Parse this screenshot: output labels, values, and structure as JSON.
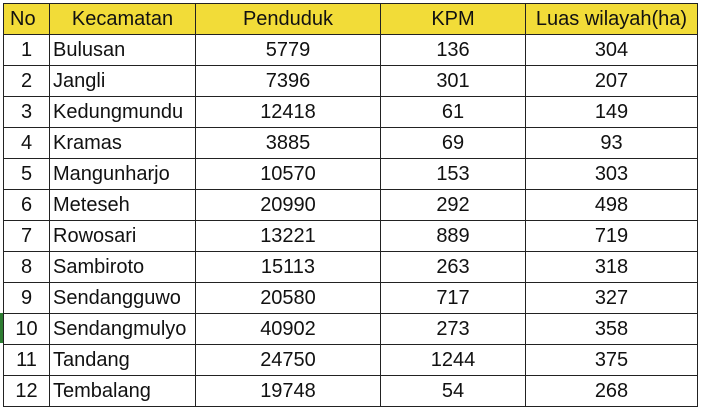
{
  "table": {
    "headers": [
      "No",
      "Kecamatan",
      "Penduduk",
      "KPM",
      "Luas wilayah(ha)"
    ],
    "rows": [
      [
        "1",
        "Bulusan",
        "5779",
        "136",
        "304"
      ],
      [
        "2",
        "Jangli",
        "7396",
        "301",
        "207"
      ],
      [
        "3",
        "Kedungmundu",
        "12418",
        "61",
        "149"
      ],
      [
        "4",
        "Kramas",
        "3885",
        "69",
        "93"
      ],
      [
        "5",
        "Mangunharjo",
        "10570",
        "153",
        "303"
      ],
      [
        "6",
        "Meteseh",
        "20990",
        "292",
        "498"
      ],
      [
        "7",
        "Rowosari",
        "13221",
        "889",
        "719"
      ],
      [
        "8",
        "Sambiroto",
        "15113",
        "263",
        "318"
      ],
      [
        "9",
        "Sendangguwo",
        "20580",
        "717",
        "327"
      ],
      [
        "10",
        "Sendangmulyo",
        "40902",
        "273",
        "358"
      ],
      [
        "11",
        "Tandang",
        "24750",
        "1244",
        "375"
      ],
      [
        "12",
        "Tembalang",
        "19748",
        "54",
        "268"
      ]
    ]
  },
  "colors": {
    "header_fill": "#f2dc38",
    "border": "#222222",
    "row_marker": "#2e7d32"
  }
}
